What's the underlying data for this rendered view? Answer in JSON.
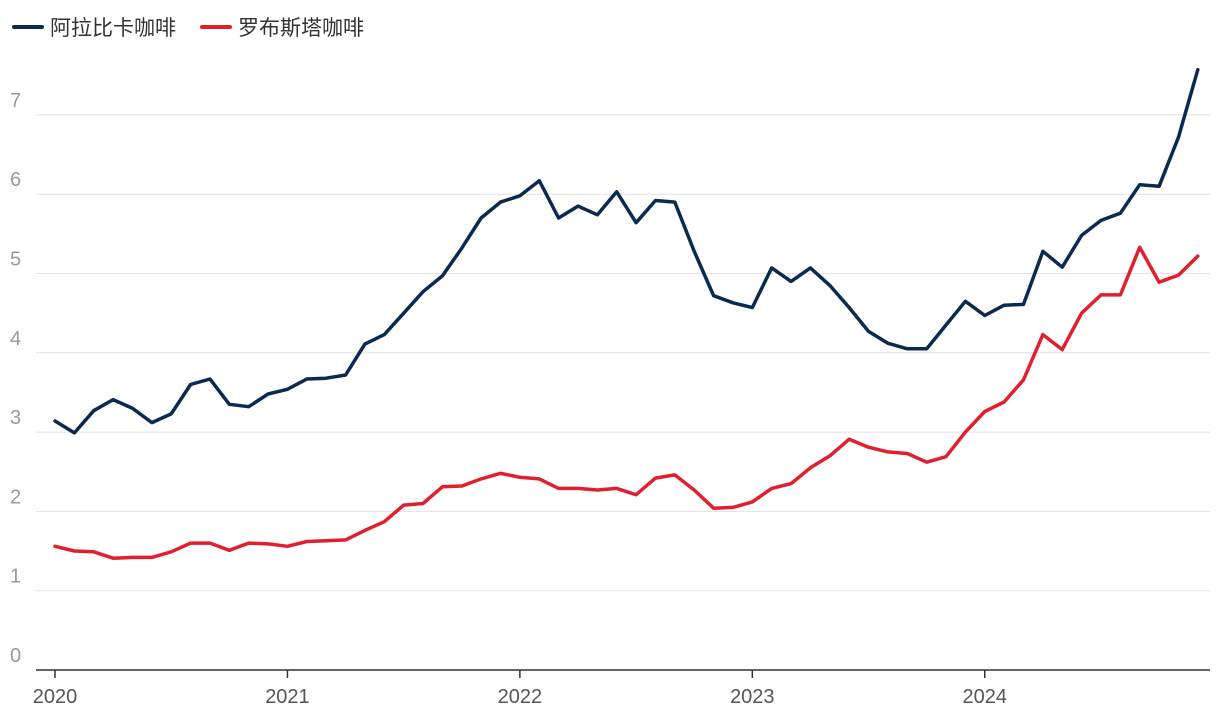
{
  "chart_data": {
    "type": "line",
    "title": "",
    "xlabel": "",
    "ylabel": "",
    "ylim": [
      0,
      7.7
    ],
    "xlim": [
      "2020-01",
      "2024-12"
    ],
    "grid": true,
    "legend_position": "top-left",
    "y_ticks": [
      0,
      1,
      2,
      3,
      4,
      5,
      6,
      7
    ],
    "x_ticks": [
      "2020",
      "2021",
      "2022",
      "2023",
      "2024"
    ],
    "x": [
      "2020-01",
      "2020-02",
      "2020-03",
      "2020-04",
      "2020-05",
      "2020-06",
      "2020-07",
      "2020-08",
      "2020-09",
      "2020-10",
      "2020-11",
      "2020-12",
      "2021-01",
      "2021-02",
      "2021-03",
      "2021-04",
      "2021-05",
      "2021-06",
      "2021-07",
      "2021-08",
      "2021-09",
      "2021-10",
      "2021-11",
      "2021-12",
      "2022-01",
      "2022-02",
      "2022-03",
      "2022-04",
      "2022-05",
      "2022-06",
      "2022-07",
      "2022-08",
      "2022-09",
      "2022-10",
      "2022-11",
      "2022-12",
      "2023-01",
      "2023-02",
      "2023-03",
      "2023-04",
      "2023-05",
      "2023-06",
      "2023-07",
      "2023-08",
      "2023-09",
      "2023-10",
      "2023-11",
      "2023-12",
      "2024-01",
      "2024-02",
      "2024-03",
      "2024-04",
      "2024-05",
      "2024-06",
      "2024-07",
      "2024-08",
      "2024-09",
      "2024-10",
      "2024-11",
      "2024-12"
    ],
    "series": [
      {
        "name": "阿拉比卡咖啡",
        "color": "#0b2a4f",
        "values": [
          3.14,
          2.99,
          3.27,
          3.41,
          3.3,
          3.12,
          3.23,
          3.6,
          3.67,
          3.35,
          3.32,
          3.48,
          3.54,
          3.67,
          3.68,
          3.72,
          4.11,
          4.23,
          4.5,
          4.77,
          4.97,
          5.32,
          5.7,
          5.9,
          5.98,
          6.17,
          5.7,
          5.85,
          5.74,
          6.03,
          5.64,
          5.92,
          5.9,
          5.28,
          4.72,
          4.63,
          4.57,
          5.07,
          4.9,
          5.07,
          4.85,
          4.57,
          4.27,
          4.12,
          4.05,
          4.05,
          4.35,
          4.65,
          4.47,
          4.6,
          4.61,
          5.28,
          5.08,
          5.48,
          5.67,
          5.76,
          6.12,
          6.1,
          6.72,
          7.57
        ]
      },
      {
        "name": "罗布斯塔咖啡",
        "color": "#e0202e",
        "values": [
          1.56,
          1.5,
          1.49,
          1.41,
          1.42,
          1.42,
          1.49,
          1.6,
          1.6,
          1.51,
          1.6,
          1.59,
          1.56,
          1.62,
          1.63,
          1.64,
          1.76,
          1.87,
          2.08,
          2.1,
          2.31,
          2.32,
          2.41,
          2.48,
          2.43,
          2.41,
          2.29,
          2.29,
          2.27,
          2.29,
          2.21,
          2.42,
          2.46,
          2.27,
          2.04,
          2.05,
          2.12,
          2.29,
          2.35,
          2.55,
          2.7,
          2.91,
          2.81,
          2.75,
          2.73,
          2.62,
          2.69,
          3.0,
          3.26,
          3.38,
          3.66,
          4.23,
          4.04,
          4.5,
          4.73,
          4.73,
          5.33,
          4.89,
          4.98,
          5.22
        ]
      }
    ]
  }
}
